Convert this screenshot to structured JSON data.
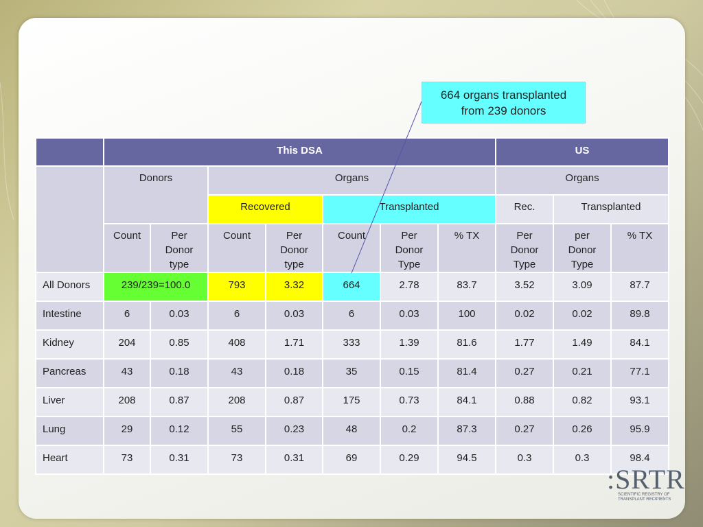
{
  "callout": {
    "line1": "664 organs transplanted",
    "line2": "from 239 donors"
  },
  "table": {
    "header": {
      "this_dsa": "This DSA",
      "us": "US"
    },
    "sub": {
      "donors": "Donors",
      "organs": "Organs",
      "us_organs": "Organs"
    },
    "sub2": {
      "recovered": "Recovered",
      "transplanted": "Transplanted",
      "us_rec": "Rec.",
      "us_transplanted": "Transplanted"
    },
    "cols": {
      "d_count": "Count",
      "d_per": [
        "Per",
        "Donor",
        "type"
      ],
      "r_count": "Count",
      "r_per": [
        "Per",
        "Donor",
        "type"
      ],
      "t_count": "Count",
      "t_per": [
        "Per",
        "Donor",
        "Type"
      ],
      "t_pct": "% TX",
      "us_rec_per": [
        "Per",
        "Donor",
        "Type"
      ],
      "us_t_per": [
        "per",
        "Donor",
        "Type"
      ],
      "us_pct": "% TX"
    },
    "rows": [
      {
        "label": "All Donors",
        "vals": [
          "239/239=100.0",
          "793",
          "3.32",
          "664",
          "2.78",
          "83.7",
          "3.52",
          "3.09",
          "87.7"
        ]
      },
      {
        "label": "Intestine",
        "vals": [
          "6",
          "0.03",
          "6",
          "0.03",
          "6",
          "0.03",
          "100",
          "0.02",
          "0.02",
          "89.8"
        ]
      },
      {
        "label": "Kidney",
        "vals": [
          "204",
          "0.85",
          "408",
          "1.71",
          "333",
          "1.39",
          "81.6",
          "1.77",
          "1.49",
          "84.1"
        ]
      },
      {
        "label": "Pancreas",
        "vals": [
          "43",
          "0.18",
          "43",
          "0.18",
          "35",
          "0.15",
          "81.4",
          "0.27",
          "0.21",
          "77.1"
        ]
      },
      {
        "label": "Liver",
        "vals": [
          "208",
          "0.87",
          "208",
          "0.87",
          "175",
          "0.73",
          "84.1",
          "0.88",
          "0.82",
          "93.1"
        ]
      },
      {
        "label": "Lung",
        "vals": [
          "29",
          "0.12",
          "55",
          "0.23",
          "48",
          "0.2",
          "87.3",
          "0.27",
          "0.26",
          "95.9"
        ]
      },
      {
        "label": "Heart",
        "vals": [
          "73",
          "0.31",
          "73",
          "0.31",
          "69",
          "0.29",
          "94.5",
          "0.3",
          "0.3",
          "98.4"
        ]
      }
    ]
  },
  "logo": {
    "mark": ":SRTR",
    "line1": "SCIENTIFIC REGISTRY OF",
    "line2": "TRANSPLANT RECIPIENTS"
  }
}
